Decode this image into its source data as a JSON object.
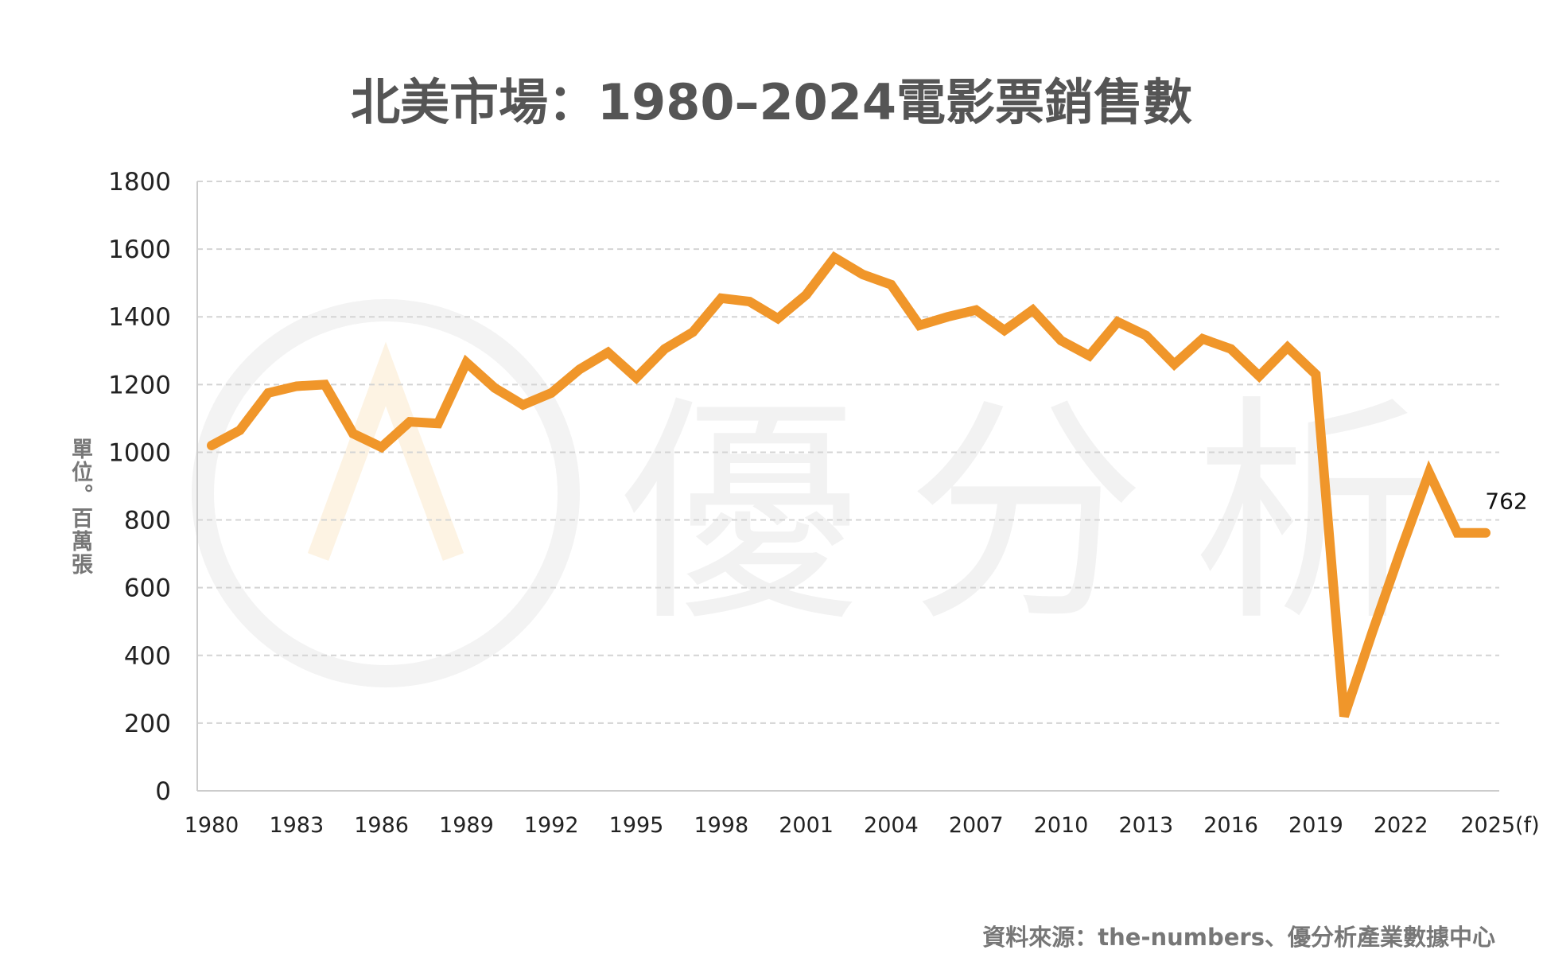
{
  "chart_data": {
    "type": "line",
    "title": "北美市場：1980–2024電影票銷售數",
    "ylabel": "單位。百萬張",
    "xlabel": "",
    "ylim": [
      0,
      1800
    ],
    "yticks": [
      0,
      200,
      400,
      600,
      800,
      1000,
      1200,
      1400,
      1600,
      1800
    ],
    "xtick_labels": [
      "1980",
      "1983",
      "1986",
      "1989",
      "1992",
      "1995",
      "1998",
      "2001",
      "2004",
      "2007",
      "2010",
      "2013",
      "2016",
      "2019",
      "2022",
      "2025(f)"
    ],
    "x": [
      1980,
      1981,
      1982,
      1983,
      1984,
      1985,
      1986,
      1987,
      1988,
      1989,
      1990,
      1991,
      1992,
      1993,
      1994,
      1995,
      1996,
      1997,
      1998,
      1999,
      2000,
      2001,
      2002,
      2003,
      2004,
      2005,
      2006,
      2007,
      2008,
      2009,
      2010,
      2011,
      2012,
      2013,
      2014,
      2015,
      2016,
      2017,
      2018,
      2019,
      2020,
      2021,
      2022,
      2023,
      2024,
      2025
    ],
    "values": [
      1020,
      1065,
      1175,
      1195,
      1200,
      1055,
      1015,
      1090,
      1085,
      1265,
      1190,
      1140,
      1175,
      1245,
      1295,
      1220,
      1305,
      1355,
      1455,
      1445,
      1395,
      1465,
      1575,
      1525,
      1495,
      1375,
      1400,
      1420,
      1360,
      1420,
      1330,
      1285,
      1385,
      1345,
      1260,
      1335,
      1305,
      1225,
      1310,
      1230,
      220,
      470,
      710,
      940,
      762,
      762
    ],
    "data_labels": [
      {
        "x": 2025,
        "text": "762"
      }
    ],
    "grid": true,
    "line_color": "#F0962A",
    "legend": "none"
  },
  "source": "資料來源：the-numbers、優分析產業數據中心",
  "watermark": "優分析"
}
